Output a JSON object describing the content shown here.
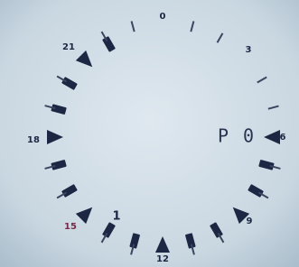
{
  "dial_labels": [
    "0",
    "3",
    "6",
    "9",
    "12",
    "15",
    "18",
    "21"
  ],
  "display": "P 0",
  "indicator": "1"
}
